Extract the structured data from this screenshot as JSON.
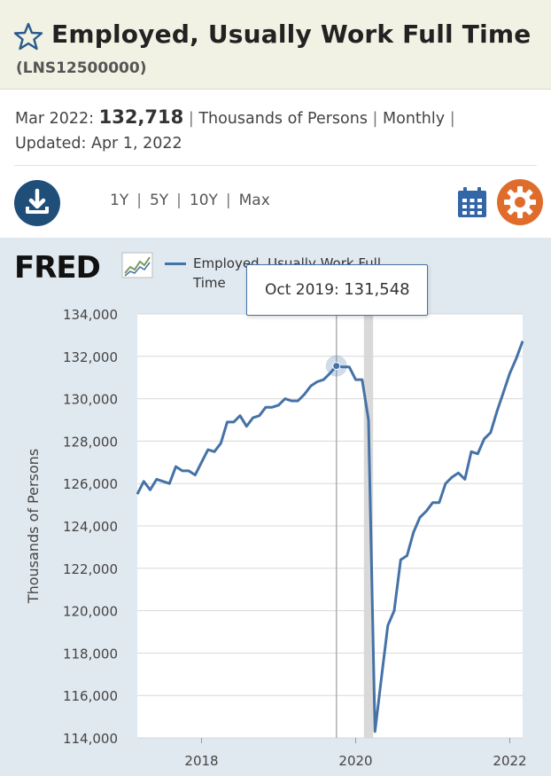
{
  "header": {
    "title": "Employed, Usually Work Full Time",
    "series_id": "(LNS12500000)"
  },
  "meta": {
    "date_label": "Mar 2022:",
    "value": "132,718",
    "units": "Thousands of Persons",
    "frequency": "Monthly",
    "updated_label": "Updated:",
    "updated_date": "Apr 1, 2022"
  },
  "toolbar": {
    "ranges": [
      "1Y",
      "5Y",
      "10Y",
      "Max"
    ],
    "download_icon": "download-icon",
    "calendar_icon": "calendar-icon",
    "settings_icon": "gear-icon"
  },
  "brand": {
    "logo": "FRED"
  },
  "tooltip": {
    "date": "Oct 2019:",
    "value": "131,548"
  },
  "colors": {
    "series": "#4572a7",
    "recession": "#d9d9d9",
    "plot_bg": "#e1e9f0",
    "accent_orange": "#e06c2c",
    "header_bg": "#f1f1e4"
  },
  "chart_data": {
    "type": "line",
    "title": "",
    "ylabel": "Thousands of Persons",
    "xlabel": "",
    "x_ticks": [
      "2018",
      "2020",
      "2022"
    ],
    "y_ticks": [
      "114,000",
      "116,000",
      "118,000",
      "120,000",
      "122,000",
      "124,000",
      "126,000",
      "128,000",
      "130,000",
      "132,000",
      "134,000"
    ],
    "ylim": [
      114000,
      134000
    ],
    "xlim": [
      "2017-03",
      "2022-03"
    ],
    "grid": true,
    "legend": "top",
    "recession_shading": [
      "2020-02",
      "2020-04"
    ],
    "highlight": {
      "x": "2019-10",
      "y": 131548
    },
    "series": [
      {
        "name": "Employed, Usually Work Full Time",
        "x": [
          "2017-03",
          "2017-04",
          "2017-05",
          "2017-06",
          "2017-07",
          "2017-08",
          "2017-09",
          "2017-10",
          "2017-11",
          "2017-12",
          "2018-01",
          "2018-02",
          "2018-03",
          "2018-04",
          "2018-05",
          "2018-06",
          "2018-07",
          "2018-08",
          "2018-09",
          "2018-10",
          "2018-11",
          "2018-12",
          "2019-01",
          "2019-02",
          "2019-03",
          "2019-04",
          "2019-05",
          "2019-06",
          "2019-07",
          "2019-08",
          "2019-09",
          "2019-10",
          "2019-11",
          "2019-12",
          "2020-01",
          "2020-02",
          "2020-03",
          "2020-04",
          "2020-05",
          "2020-06",
          "2020-07",
          "2020-08",
          "2020-09",
          "2020-10",
          "2020-11",
          "2020-12",
          "2021-01",
          "2021-02",
          "2021-03",
          "2021-04",
          "2021-05",
          "2021-06",
          "2021-07",
          "2021-08",
          "2021-09",
          "2021-10",
          "2021-11",
          "2021-12",
          "2022-01",
          "2022-02",
          "2022-03"
        ],
        "values": [
          125500,
          126100,
          125700,
          126200,
          126100,
          126000,
          126800,
          126600,
          126600,
          126400,
          127000,
          127600,
          127500,
          127900,
          128900,
          128900,
          129200,
          128700,
          129100,
          129200,
          129600,
          129600,
          129700,
          130000,
          129900,
          129900,
          130200,
          130600,
          130800,
          130900,
          131200,
          131548,
          131500,
          131500,
          130900,
          130900,
          129000,
          114300,
          116800,
          119300,
          120000,
          122400,
          122600,
          123700,
          124400,
          124700,
          125100,
          125100,
          126000,
          126300,
          126500,
          126200,
          127500,
          127400,
          128100,
          128400,
          129400,
          130300,
          131200,
          131900,
          132718
        ]
      }
    ]
  }
}
